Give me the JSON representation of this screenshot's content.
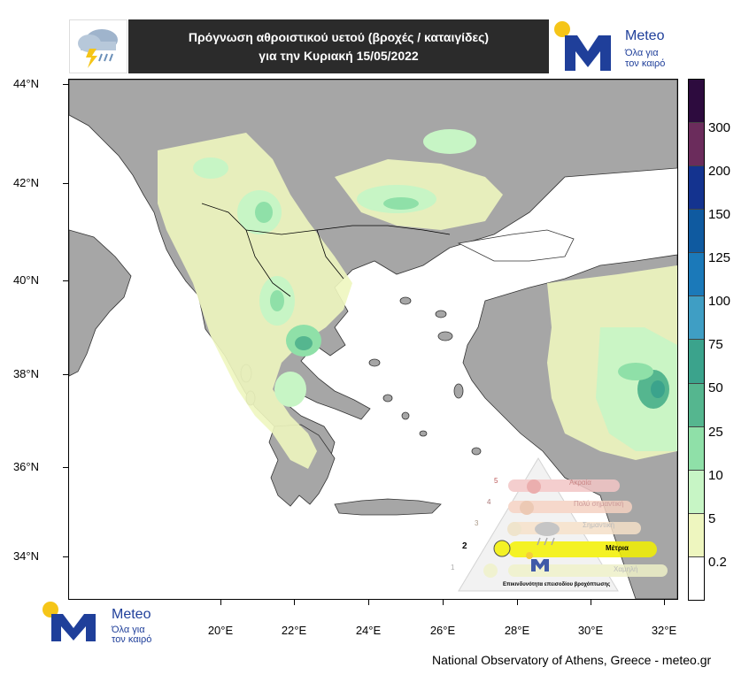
{
  "header": {
    "title_line1": "Πρόγνωση αθροιστικού υετού (βροχές / καταιγίδες)",
    "title_line2": "για την Κυριακή 15/05/2022"
  },
  "brand": {
    "name": "Meteo",
    "tagline_line1": "Όλα για",
    "tagline_line2": "τον καιρό",
    "accent_color": "#1f3f9a",
    "sun_color": "#f5c518"
  },
  "map": {
    "lat_labels": [
      "44°N",
      "42°N",
      "40°N",
      "38°N",
      "36°N",
      "34°N"
    ],
    "lon_labels": [
      "20°E",
      "22°E",
      "24°E",
      "26°E",
      "28°E",
      "30°E",
      "32°E"
    ],
    "land_color": "#a6a6a6",
    "sea_color": "#ffffff"
  },
  "colorbar": {
    "labels": [
      "300",
      "200",
      "150",
      "125",
      "100",
      "75",
      "50",
      "25",
      "10",
      "5",
      "0.2"
    ],
    "colors": [
      "#2d0b3e",
      "#6b2c5c",
      "#14338f",
      "#0f5aa0",
      "#1b79b9",
      "#3f9ec4",
      "#3ba38c",
      "#55b68f",
      "#8fe0a8",
      "#c7f5c5",
      "#eef6bf",
      "#ffffff"
    ]
  },
  "risk_scale": {
    "levels": [
      "5",
      "4",
      "3",
      "2",
      "1"
    ],
    "labels": [
      "Ακραία",
      "Πολύ σημαντική",
      "Σημαντική",
      "Μέτρια",
      "Χαμηλή"
    ],
    "active_label": "Μέτρια",
    "caption": "Επικινδυνότητα επεισοδίου βροχόπτωσης"
  },
  "footer": {
    "credit": "National Observatory of Athens, Greece - meteo.gr"
  }
}
